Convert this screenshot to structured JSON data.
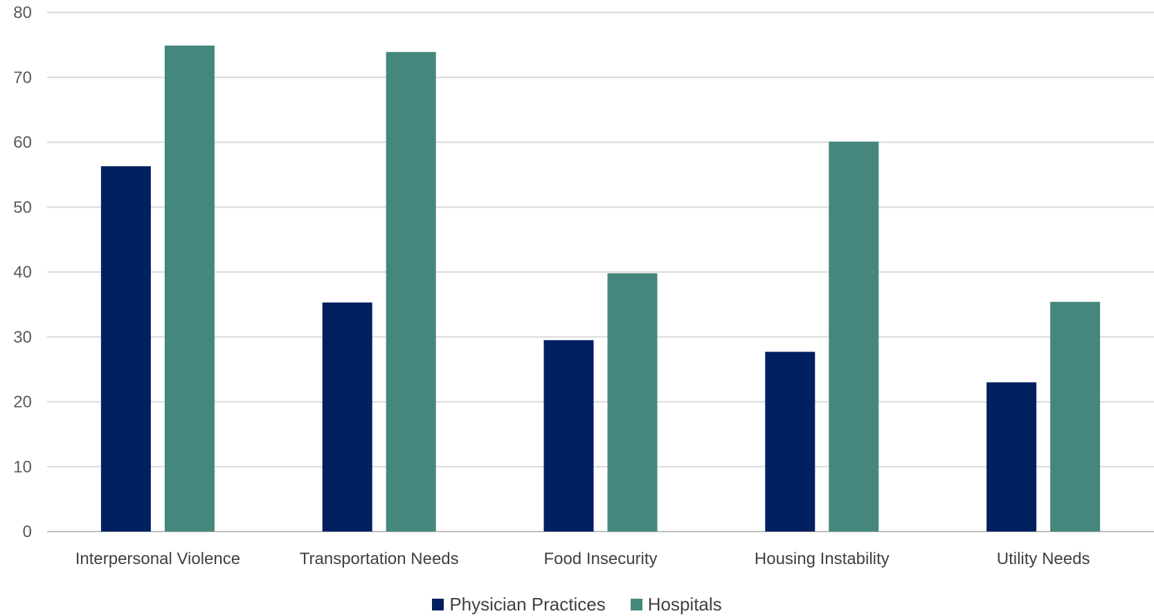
{
  "chart_data": {
    "type": "bar",
    "categories": [
      "Interpersonal Violence",
      "Transportation Needs",
      "Food Insecurity",
      "Housing Instability",
      "Utility Needs"
    ],
    "series": [
      {
        "name": "Physician Practices",
        "color": "#002060",
        "values": [
          56.3,
          35.3,
          29.5,
          27.7,
          23.0
        ]
      },
      {
        "name": "Hospitals",
        "color": "#45877C",
        "values": [
          74.9,
          73.9,
          39.8,
          60.1,
          35.4
        ]
      }
    ],
    "ylim": [
      0,
      80
    ],
    "yticks": [
      0,
      10,
      20,
      30,
      40,
      50,
      60,
      70,
      80
    ],
    "grid": true,
    "legend_position": "bottom"
  }
}
